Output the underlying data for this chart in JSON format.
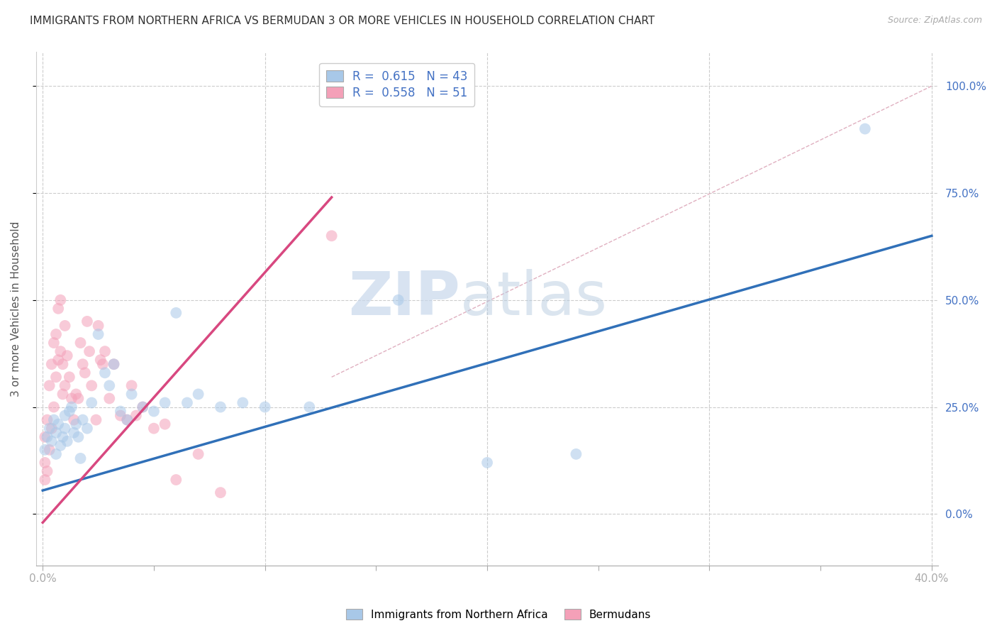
{
  "title": "IMMIGRANTS FROM NORTHERN AFRICA VS BERMUDAN 3 OR MORE VEHICLES IN HOUSEHOLD CORRELATION CHART",
  "source": "Source: ZipAtlas.com",
  "ylabel_label": "3 or more Vehicles in Household",
  "xlim": [
    -0.003,
    0.403
  ],
  "ylim": [
    -0.12,
    1.08
  ],
  "xticks": [
    0.0,
    0.05,
    0.1,
    0.15,
    0.2,
    0.25,
    0.3,
    0.35,
    0.4
  ],
  "yticks": [
    0.0,
    0.25,
    0.5,
    0.75,
    1.0
  ],
  "ytick_labels": [
    "0.0%",
    "25.0%",
    "50.0%",
    "75.0%",
    "100.0%"
  ],
  "xtick_labels": [
    "0.0%",
    "",
    "",
    "",
    "",
    "",
    "",
    "",
    "40.0%"
  ],
  "blue_R": 0.615,
  "blue_N": 43,
  "pink_R": 0.558,
  "pink_N": 51,
  "blue_color": "#a8c8e8",
  "pink_color": "#f4a0b8",
  "blue_line_color": "#3070b8",
  "pink_line_color": "#d84880",
  "text_color": "#4472c4",
  "background_color": "#ffffff",
  "grid_color": "#cccccc",
  "watermark_zip": "ZIP",
  "watermark_atlas": "atlas",
  "blue_scatter_x": [
    0.001,
    0.002,
    0.003,
    0.004,
    0.005,
    0.006,
    0.006,
    0.007,
    0.008,
    0.009,
    0.01,
    0.01,
    0.011,
    0.012,
    0.013,
    0.014,
    0.015,
    0.016,
    0.017,
    0.018,
    0.02,
    0.022,
    0.025,
    0.028,
    0.03,
    0.032,
    0.035,
    0.038,
    0.04,
    0.045,
    0.05,
    0.055,
    0.06,
    0.065,
    0.07,
    0.08,
    0.09,
    0.1,
    0.12,
    0.16,
    0.2,
    0.24,
    0.37
  ],
  "blue_scatter_y": [
    0.15,
    0.18,
    0.2,
    0.17,
    0.22,
    0.14,
    0.19,
    0.21,
    0.16,
    0.18,
    0.2,
    0.23,
    0.17,
    0.24,
    0.25,
    0.19,
    0.21,
    0.18,
    0.13,
    0.22,
    0.2,
    0.26,
    0.42,
    0.33,
    0.3,
    0.35,
    0.24,
    0.22,
    0.28,
    0.25,
    0.24,
    0.26,
    0.47,
    0.26,
    0.28,
    0.25,
    0.26,
    0.25,
    0.25,
    0.5,
    0.12,
    0.14,
    0.9
  ],
  "pink_scatter_x": [
    0.001,
    0.001,
    0.001,
    0.002,
    0.002,
    0.003,
    0.003,
    0.004,
    0.004,
    0.005,
    0.005,
    0.006,
    0.006,
    0.007,
    0.007,
    0.008,
    0.008,
    0.009,
    0.009,
    0.01,
    0.01,
    0.011,
    0.012,
    0.013,
    0.014,
    0.015,
    0.016,
    0.017,
    0.018,
    0.019,
    0.02,
    0.021,
    0.022,
    0.024,
    0.025,
    0.026,
    0.027,
    0.028,
    0.03,
    0.032,
    0.035,
    0.038,
    0.04,
    0.042,
    0.045,
    0.05,
    0.055,
    0.06,
    0.07,
    0.08,
    0.13
  ],
  "pink_scatter_y": [
    0.08,
    0.12,
    0.18,
    0.1,
    0.22,
    0.15,
    0.3,
    0.2,
    0.35,
    0.25,
    0.4,
    0.32,
    0.42,
    0.36,
    0.48,
    0.38,
    0.5,
    0.28,
    0.35,
    0.3,
    0.44,
    0.37,
    0.32,
    0.27,
    0.22,
    0.28,
    0.27,
    0.4,
    0.35,
    0.33,
    0.45,
    0.38,
    0.3,
    0.22,
    0.44,
    0.36,
    0.35,
    0.38,
    0.27,
    0.35,
    0.23,
    0.22,
    0.3,
    0.23,
    0.25,
    0.2,
    0.21,
    0.08,
    0.14,
    0.05,
    0.65
  ],
  "blue_line_x": [
    0.0,
    0.4
  ],
  "blue_line_y": [
    0.055,
    0.65
  ],
  "pink_line_x": [
    0.0,
    0.13
  ],
  "pink_line_y": [
    -0.02,
    0.74
  ],
  "ref_line_x": [
    0.13,
    0.4
  ],
  "ref_line_y": [
    0.32,
    1.0
  ]
}
